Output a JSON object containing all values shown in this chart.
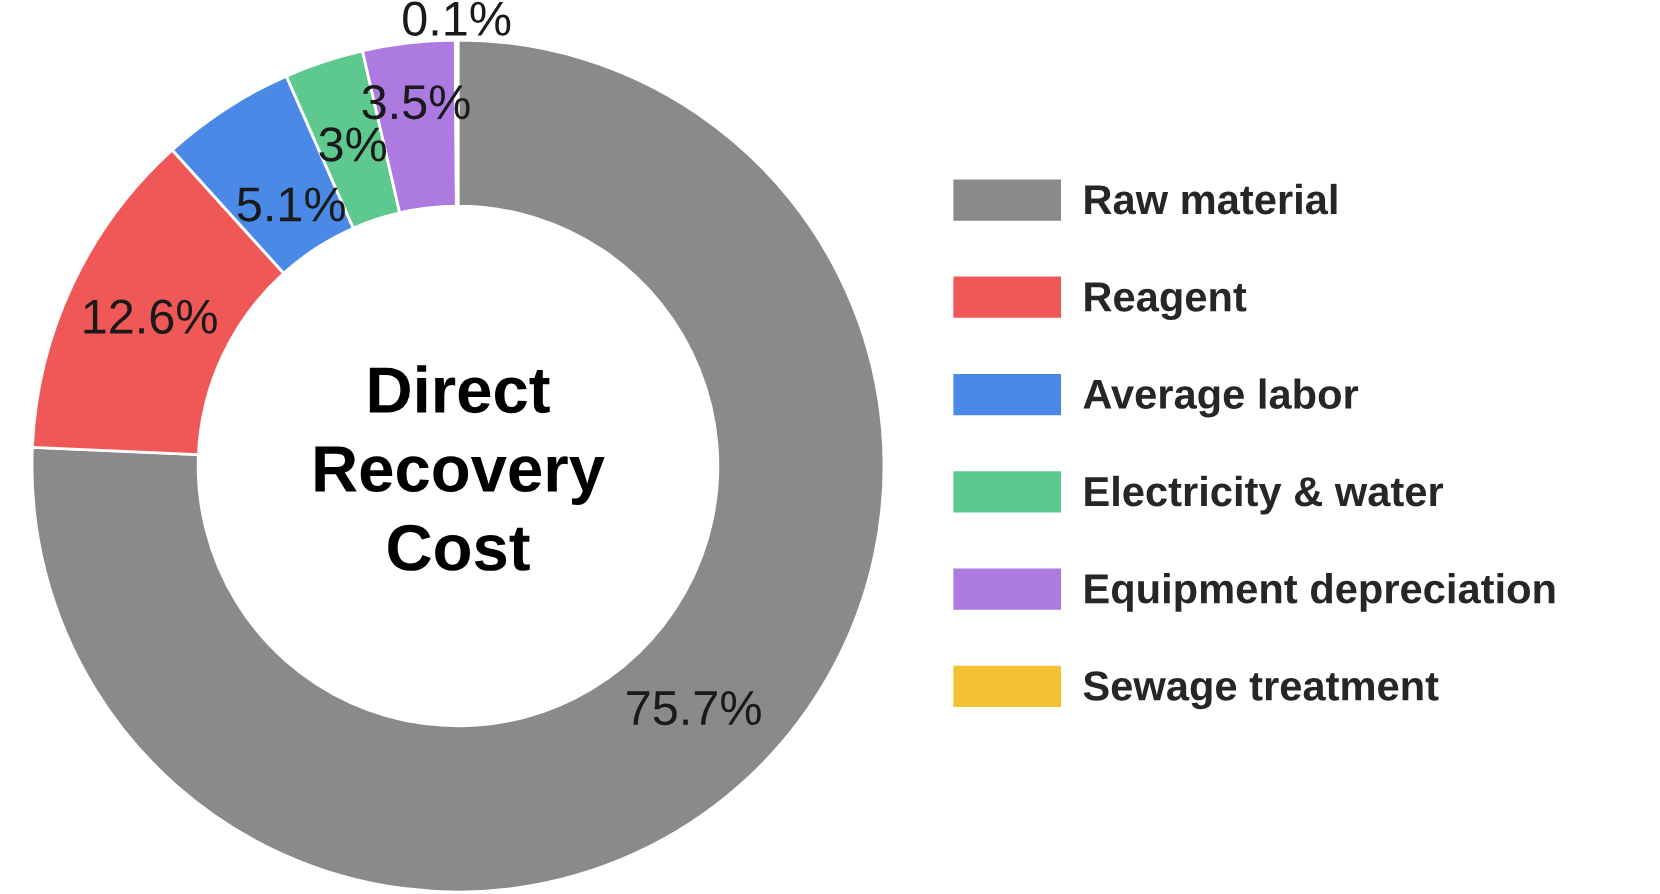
{
  "chart_data": {
    "type": "donut",
    "title": "Direct Recovery Cost",
    "categories": [
      "Raw material",
      "Reagent",
      "Average labor",
      "Electricity & water",
      "Equipment depreciation",
      "Sewage treatment"
    ],
    "values": [
      75.7,
      12.6,
      5.1,
      3,
      3.5,
      0.1
    ],
    "value_labels": [
      "75.7%",
      "12.6%",
      "5.1%",
      "3%",
      "3.5%",
      "0.1%"
    ],
    "colors": [
      "#8a8a8a",
      "#f05858",
      "#4a8ae6",
      "#5ec98e",
      "#ac7ae0",
      "#f2c232"
    ],
    "legend": "right"
  }
}
